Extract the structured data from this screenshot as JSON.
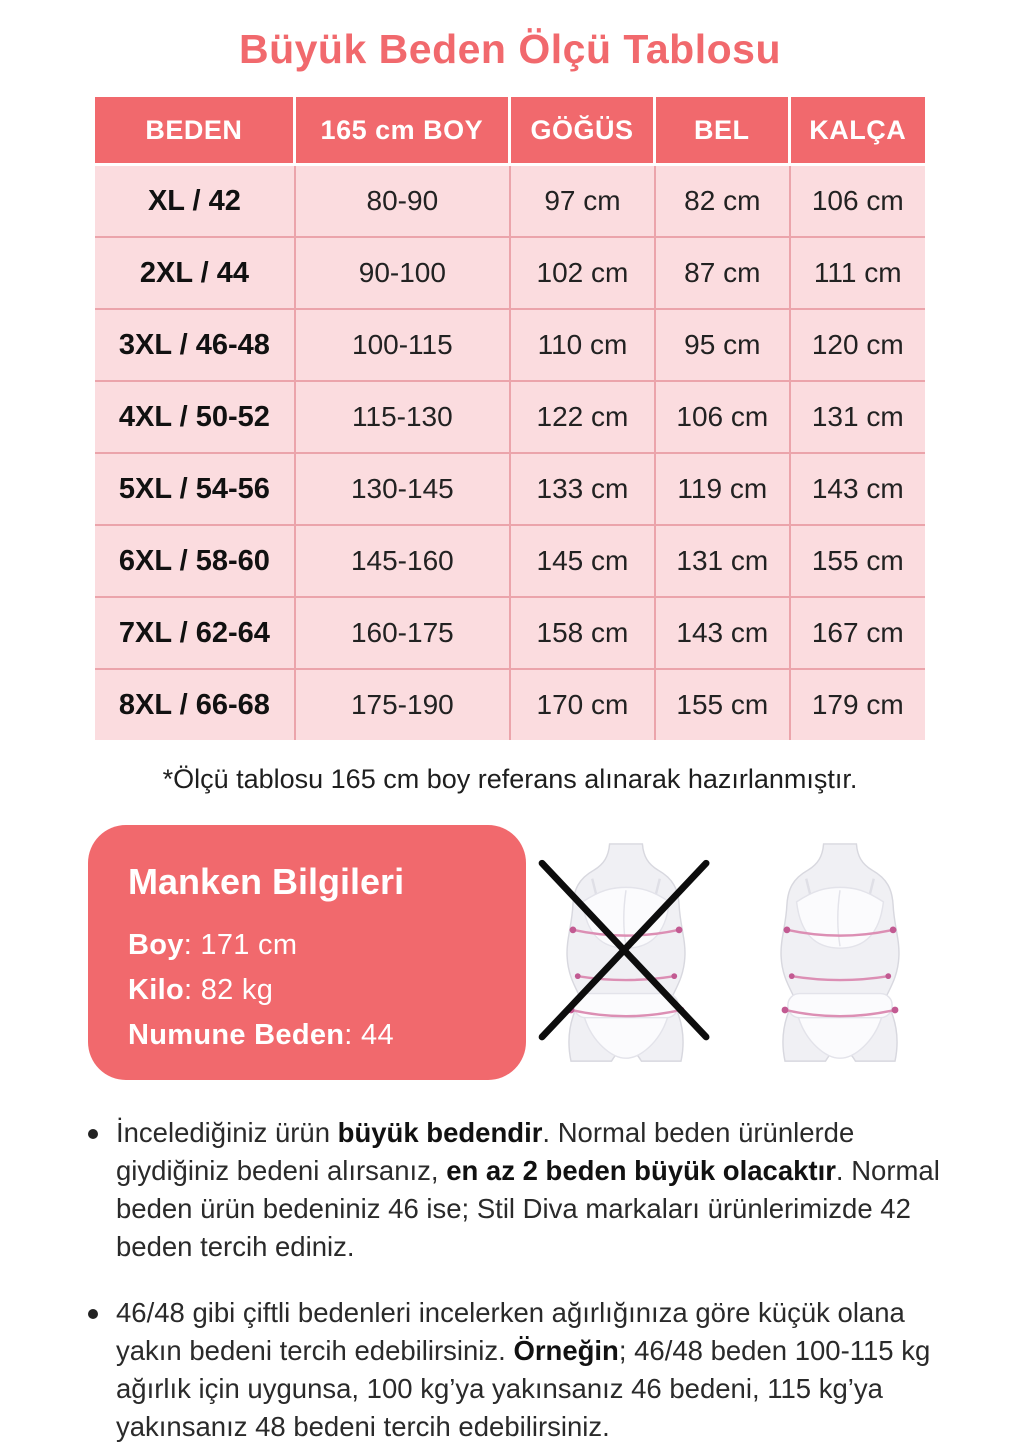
{
  "title": "Büyük Beden Ölçü Tablosu",
  "size_table": {
    "headers": [
      "BEDEN",
      "165 cm BOY",
      "GÖĞÜS",
      "BEL",
      "KALÇA"
    ],
    "rows": [
      [
        "XL / 42",
        "80-90",
        "97 cm",
        "82 cm",
        "106 cm"
      ],
      [
        "2XL / 44",
        "90-100",
        "102 cm",
        "87 cm",
        "111 cm"
      ],
      [
        "3XL / 46-48",
        "100-115",
        "110 cm",
        "95 cm",
        "120 cm"
      ],
      [
        "4XL / 50-52",
        "115-130",
        "122 cm",
        "106 cm",
        "131 cm"
      ],
      [
        "5XL / 54-56",
        "130-145",
        "133 cm",
        "119 cm",
        "143 cm"
      ],
      [
        "6XL / 58-60",
        "145-160",
        "145 cm",
        "131 cm",
        "155 cm"
      ],
      [
        "7XL / 62-64",
        "160-175",
        "158 cm",
        "143 cm",
        "167 cm"
      ],
      [
        "8XL / 66-68",
        "175-190",
        "170 cm",
        "155 cm",
        "179 cm"
      ]
    ]
  },
  "footnote": "*Ölçü tablosu 165 cm boy referans alınarak hazırlanmıştır.",
  "model_info": {
    "title": "Manken Bilgileri",
    "lines": [
      {
        "label": "Boy",
        "value": "171 cm"
      },
      {
        "label": "Kilo",
        "value": "82 kg"
      },
      {
        "label": "Numune Beden",
        "value": "44"
      }
    ]
  },
  "notes": [
    {
      "runs": [
        {
          "t": "İncelediğiniz ürün ",
          "b": false
        },
        {
          "t": "büyük bedendir",
          "b": true
        },
        {
          "t": ". Normal beden ürünlerde giydiğiniz bedeni alırsanız, ",
          "b": false
        },
        {
          "t": "en az 2 beden büyük olacaktır",
          "b": true
        },
        {
          "t": ". Normal beden ürün bedeniniz 46 ise; Stil Diva markaları ürünlerimizde 42 beden tercih ediniz.",
          "b": false
        }
      ]
    },
    {
      "runs": [
        {
          "t": "46/48 gibi çiftli bedenleri incelerken ağırlığınıza göre küçük olana yakın bedeni tercih edebilirsiniz. ",
          "b": false
        },
        {
          "t": "Örneğin",
          "b": true
        },
        {
          "t": "; 46/48 beden 100-115 kg ağırlık için uygunsa, 100 kg’ya yakınsanız 46 bedeni, 115 kg’ya yakınsanız 48 bedeni tercih edebilirsiniz.",
          "b": false
        }
      ]
    }
  ],
  "colors": {
    "accent_coral": "#f1696d",
    "cell_pink": "#fbdcdf",
    "cell_border_pink": "#eba4ab",
    "measure_line_pink": "#dc8fb4",
    "measure_dot_pink": "#c25a92",
    "silhouette_fill": "#f0f0f4",
    "silhouette_outline": "#d8d8df",
    "cross_black": "#0d0d0d",
    "text_dark": "#2a2a2a"
  }
}
